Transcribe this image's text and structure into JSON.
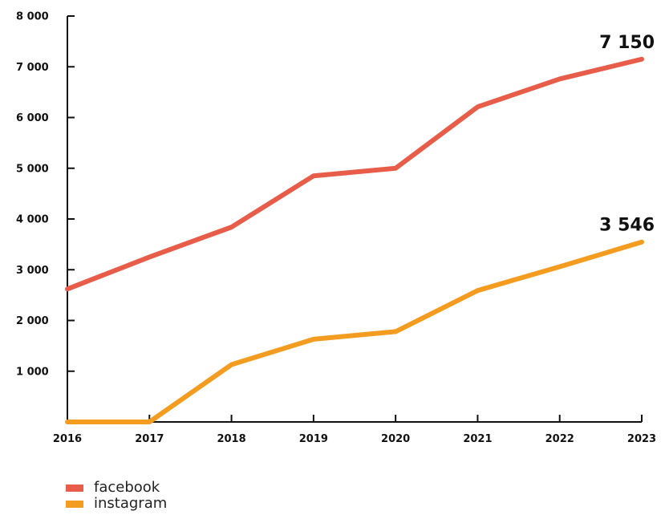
{
  "chart_data": {
    "type": "line",
    "categories": [
      "2016",
      "2017",
      "2018",
      "2019",
      "2020",
      "2021",
      "2022",
      "2023"
    ],
    "y_ticks": [
      1000,
      2000,
      3000,
      4000,
      5000,
      6000,
      7000,
      8000
    ],
    "y_tick_labels": [
      "1 000",
      "2 000",
      "3 000",
      "4 000",
      "5 000",
      "6 000",
      "7 000",
      "8 000"
    ],
    "ylim": [
      0,
      8000
    ],
    "grid": false,
    "legend_position": "bottom-left",
    "series": [
      {
        "name": "facebook",
        "color": "#e85c4a",
        "values": [
          2620,
          3250,
          3840,
          4850,
          5000,
          6210,
          6760,
          7150
        ],
        "end_label": "7 150"
      },
      {
        "name": "instagram",
        "color": "#f39c1f",
        "values": [
          0,
          0,
          1130,
          1630,
          1780,
          2590,
          3060,
          3546
        ],
        "end_label": "3 546"
      }
    ]
  }
}
